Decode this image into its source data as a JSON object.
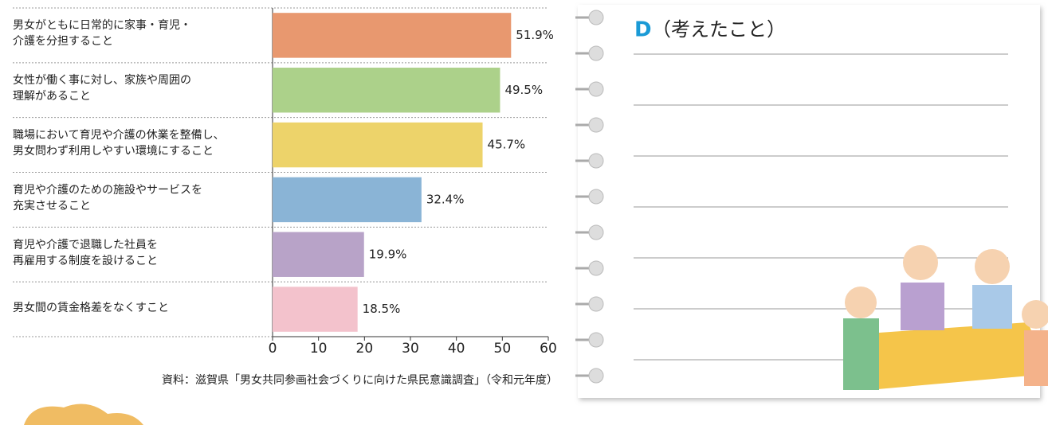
{
  "chart_data": {
    "type": "barh",
    "categories": [
      "男女がともに日常的に家事・育児・\n介護を分担すること",
      "女性が働く事に対し、家族や周囲の\n理解があること",
      "職場において育児や介護の休業を整備し、\n男女問わず利用しやすい環境にすること",
      "育児や介護のための施設やサービスを\n充実させること",
      "育児や介護で退職した社員を\n再雇用する制度を設けること",
      "男女間の賃金格差をなくすこと"
    ],
    "values": [
      51.9,
      49.5,
      45.7,
      32.4,
      19.9,
      18.5
    ],
    "value_labels": [
      "51.9%",
      "49.5%",
      "45.7%",
      "32.4%",
      "19.9%",
      "18.5%"
    ],
    "colors": [
      "#e8986f",
      "#acd18a",
      "#edd36a",
      "#8ab4d6",
      "#b8a3c8",
      "#f3c2cc"
    ],
    "xlim": [
      0,
      60
    ],
    "xticks": [
      0,
      10,
      20,
      30,
      40,
      50,
      60
    ],
    "grid": false,
    "source": "資料：滋賀県「男女共同参画社会づくりに向けた県民意識調査」（令和元年度）"
  },
  "notebook": {
    "label": "D",
    "title": "（考えたこと）"
  }
}
